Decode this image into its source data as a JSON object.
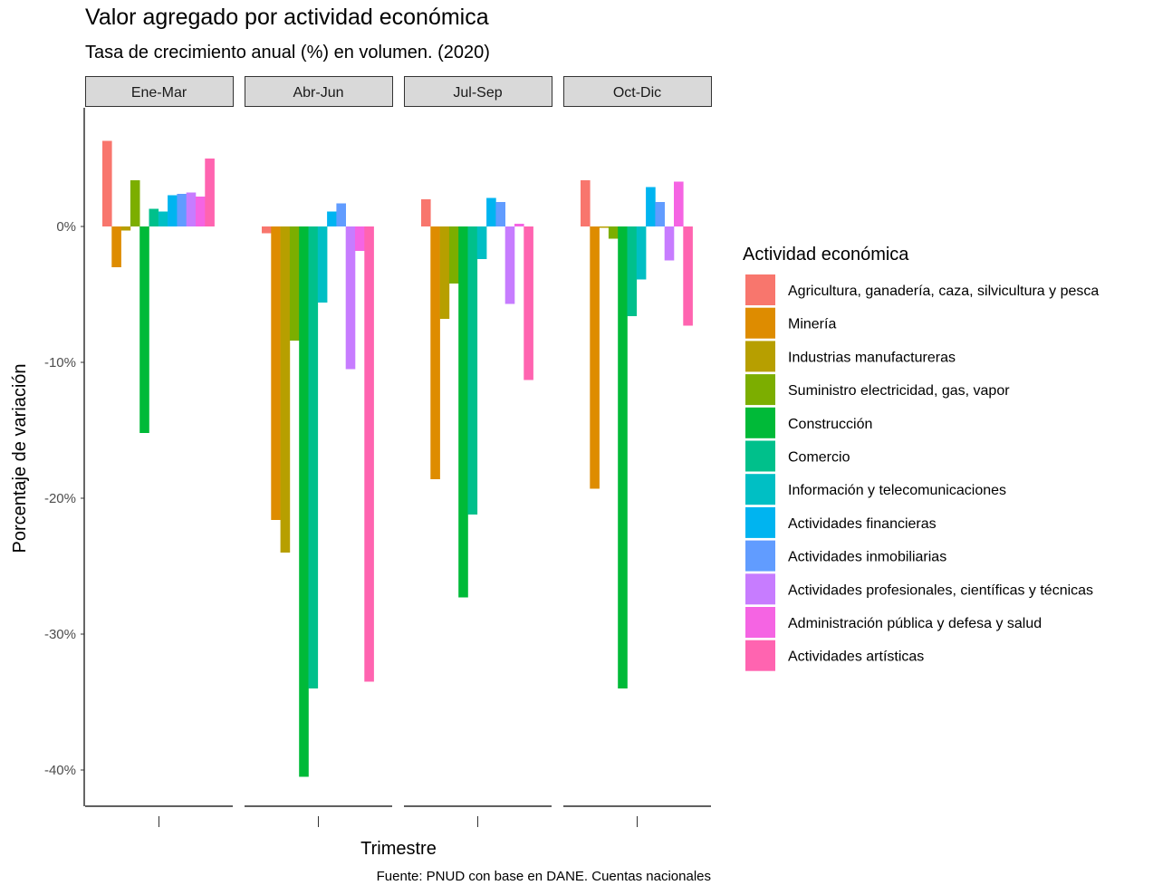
{
  "chart_data": {
    "type": "bar",
    "title": "Valor agregado por actividad económica",
    "subtitle": "Tasa de crecimiento anual (%) en volumen. (2020)",
    "xlabel": "Trimestre",
    "ylabel": "Porcentaje de variación",
    "caption": "Fuente: PNUD con base en DANE. Cuentas nacionales",
    "legend_title": "Actividad económica",
    "legend_position": "right",
    "grid": false,
    "ylim": [
      -42.5,
      8.8
    ],
    "y_ticks": [
      0,
      -10,
      -20,
      -30,
      -40
    ],
    "y_tick_labels": [
      "0%",
      "-10%",
      "-20%",
      "-30%",
      "-40%"
    ],
    "facets": [
      "Ene-Mar",
      "Abr-Jun",
      "Jul-Sep",
      "Oct-Dic"
    ],
    "series": [
      {
        "name": "Agricultura, ganadería, caza, silvicultura y pesca",
        "color": "#F8766D",
        "values": [
          6.3,
          -0.5,
          2.0,
          3.4
        ]
      },
      {
        "name": "Minería",
        "color": "#DE8C00",
        "values": [
          -3.0,
          -21.6,
          -18.6,
          -19.3
        ]
      },
      {
        "name": "Industrias manufactureras",
        "color": "#B79F00",
        "values": [
          -0.3,
          -24.0,
          -6.8,
          -0.1
        ]
      },
      {
        "name": "Suministro electricidad, gas, vapor",
        "color": "#7CAE00",
        "values": [
          3.4,
          -8.4,
          -4.2,
          -0.9
        ]
      },
      {
        "name": "Construcción",
        "color": "#00BA38",
        "values": [
          -15.2,
          -40.5,
          -27.3,
          -34.0
        ]
      },
      {
        "name": "Comercio",
        "color": "#00C08B",
        "values": [
          1.3,
          -34.0,
          -21.2,
          -6.6
        ]
      },
      {
        "name": "Información y telecomunicaciones",
        "color": "#00BFC4",
        "values": [
          1.1,
          -5.6,
          -2.4,
          -3.9
        ]
      },
      {
        "name": "Actividades financieras",
        "color": "#00B4F0",
        "values": [
          2.3,
          1.1,
          2.1,
          2.9
        ]
      },
      {
        "name": "Actividades inmobiliarias",
        "color": "#619CFF",
        "values": [
          2.4,
          1.7,
          1.8,
          1.8
        ]
      },
      {
        "name": "Actividades profesionales, científicas y técnicas",
        "color": "#C77CFF",
        "values": [
          2.5,
          -10.5,
          -5.7,
          -2.5
        ]
      },
      {
        "name": "Administración pública y defesa y salud",
        "color": "#F564E3",
        "values": [
          2.2,
          -1.8,
          0.2,
          3.3
        ]
      },
      {
        "name": "Actividades artísticas",
        "color": "#FF64B0",
        "values": [
          5.0,
          -33.5,
          -11.3,
          -7.3
        ]
      }
    ]
  }
}
